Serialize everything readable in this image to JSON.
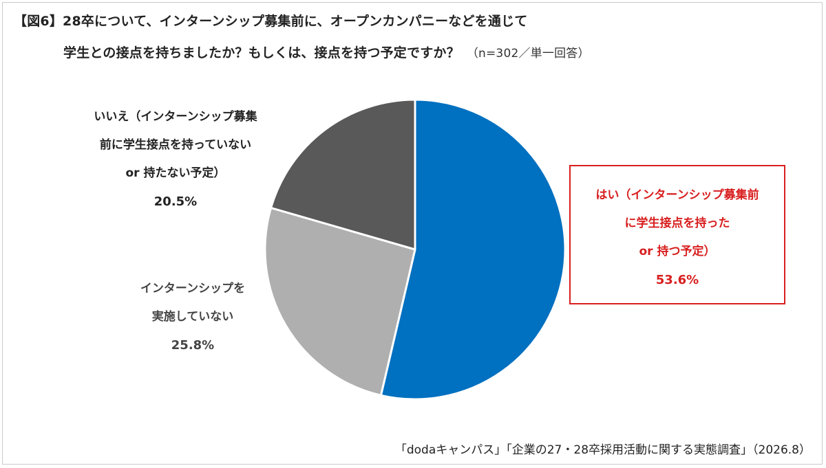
{
  "title": {
    "line1": "【図6】28卒について、インターンシップ募集前に、オープンカンパニーなどを通じて",
    "line2": "学生との接点を持ちましたか？もしくは、接点を持つ予定ですか？",
    "note": "（n=302／単一回答）"
  },
  "source": "「dodaキャンパス」「企業の27・28卒採用活動に関する実態調査」（2026.8）",
  "chart_data": {
    "type": "pie",
    "start": "12 o'clock, clockwise",
    "slices": [
      {
        "label_lines": [
          "はい（インターンシップ募集前",
          "に学生接点を持った",
          "or 持つ予定）"
        ],
        "percent_label": "53.6%",
        "value": 53.6,
        "color": "#0070c0"
      },
      {
        "label_lines": [
          "インターンシップを",
          "実施していない"
        ],
        "percent_label": "25.8%",
        "value": 25.8,
        "color": "#afafaf"
      },
      {
        "label_lines": [
          "いいえ（インターンシップ募集",
          "前に学生接点を持っていない",
          "or 持たない予定）"
        ],
        "percent_label": "20.5%",
        "value": 20.5,
        "color": "#595959"
      }
    ]
  }
}
